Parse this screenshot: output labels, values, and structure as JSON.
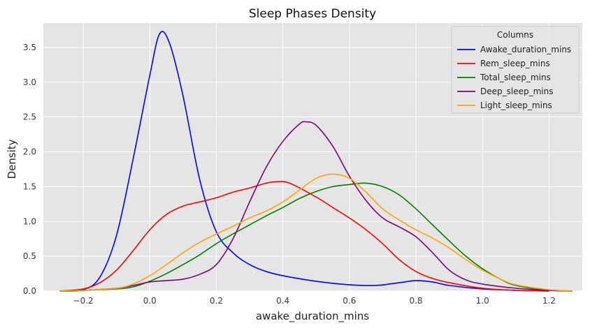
{
  "chart_data": {
    "type": "line",
    "title": "Sleep Phases Density",
    "xlabel": "awake_duration_mins",
    "ylabel": "Density",
    "xlim": [
      -0.32,
      1.3
    ],
    "ylim": [
      0,
      3.85
    ],
    "x_ticks": [
      -0.2,
      0.0,
      0.2,
      0.4,
      0.6,
      0.8,
      1.0,
      1.2
    ],
    "x_tick_labels": [
      "−0.2",
      "0.0",
      "0.2",
      "0.4",
      "0.6",
      "0.8",
      "1.0",
      "1.2"
    ],
    "y_ticks": [
      0,
      0.5,
      1.0,
      1.5,
      2.0,
      2.5,
      3.0,
      3.5
    ],
    "y_tick_labels": [
      "0.0",
      "0.5",
      "1.0",
      "1.5",
      "2.0",
      "2.5",
      "3.0",
      "3.5"
    ],
    "grid": true,
    "legend": {
      "title": "Columns",
      "placement": "top-right"
    },
    "series": [
      {
        "name": "Awake_duration_mins",
        "color": "#0000ff",
        "points": [
          [
            -0.27,
            0.0
          ],
          [
            -0.2,
            0.02
          ],
          [
            -0.15,
            0.2
          ],
          [
            -0.1,
            0.8
          ],
          [
            -0.05,
            1.9
          ],
          [
            0.0,
            3.1
          ],
          [
            0.03,
            3.7
          ],
          [
            0.06,
            3.55
          ],
          [
            0.1,
            2.8
          ],
          [
            0.15,
            1.6
          ],
          [
            0.2,
            0.85
          ],
          [
            0.25,
            0.55
          ],
          [
            0.3,
            0.38
          ],
          [
            0.35,
            0.28
          ],
          [
            0.4,
            0.22
          ],
          [
            0.5,
            0.14
          ],
          [
            0.6,
            0.09
          ],
          [
            0.68,
            0.08
          ],
          [
            0.75,
            0.12
          ],
          [
            0.8,
            0.15
          ],
          [
            0.85,
            0.13
          ],
          [
            0.9,
            0.08
          ],
          [
            1.0,
            0.03
          ],
          [
            1.1,
            0.01
          ],
          [
            1.2,
            0.0
          ]
        ]
      },
      {
        "name": "Rem_sleep_mins",
        "color": "#ff0000",
        "points": [
          [
            -0.27,
            0.0
          ],
          [
            -0.2,
            0.03
          ],
          [
            -0.15,
            0.12
          ],
          [
            -0.1,
            0.3
          ],
          [
            -0.05,
            0.58
          ],
          [
            0.0,
            0.88
          ],
          [
            0.05,
            1.1
          ],
          [
            0.1,
            1.22
          ],
          [
            0.15,
            1.28
          ],
          [
            0.2,
            1.34
          ],
          [
            0.25,
            1.42
          ],
          [
            0.3,
            1.48
          ],
          [
            0.35,
            1.55
          ],
          [
            0.38,
            1.57
          ],
          [
            0.42,
            1.55
          ],
          [
            0.5,
            1.35
          ],
          [
            0.55,
            1.2
          ],
          [
            0.6,
            1.05
          ],
          [
            0.65,
            0.88
          ],
          [
            0.7,
            0.68
          ],
          [
            0.75,
            0.45
          ],
          [
            0.8,
            0.28
          ],
          [
            0.85,
            0.18
          ],
          [
            0.9,
            0.12
          ],
          [
            1.0,
            0.04
          ],
          [
            1.1,
            0.01
          ],
          [
            1.2,
            0.0
          ]
        ]
      },
      {
        "name": "Total_sleep_mins",
        "color": "#008000",
        "points": [
          [
            -0.27,
            0.0
          ],
          [
            -0.2,
            0.01
          ],
          [
            -0.1,
            0.03
          ],
          [
            -0.05,
            0.06
          ],
          [
            0.0,
            0.14
          ],
          [
            0.05,
            0.25
          ],
          [
            0.1,
            0.38
          ],
          [
            0.15,
            0.52
          ],
          [
            0.2,
            0.68
          ],
          [
            0.25,
            0.82
          ],
          [
            0.3,
            0.95
          ],
          [
            0.35,
            1.08
          ],
          [
            0.4,
            1.2
          ],
          [
            0.45,
            1.33
          ],
          [
            0.5,
            1.43
          ],
          [
            0.55,
            1.5
          ],
          [
            0.6,
            1.53
          ],
          [
            0.65,
            1.55
          ],
          [
            0.7,
            1.5
          ],
          [
            0.75,
            1.38
          ],
          [
            0.8,
            1.18
          ],
          [
            0.85,
            0.95
          ],
          [
            0.9,
            0.72
          ],
          [
            0.95,
            0.5
          ],
          [
            1.0,
            0.32
          ],
          [
            1.05,
            0.18
          ],
          [
            1.1,
            0.08
          ],
          [
            1.2,
            0.01
          ],
          [
            1.27,
            0.0
          ]
        ]
      },
      {
        "name": "Deep_sleep_mins",
        "color": "#800080",
        "points": [
          [
            -0.27,
            0.0
          ],
          [
            -0.2,
            0.01
          ],
          [
            -0.1,
            0.04
          ],
          [
            -0.05,
            0.08
          ],
          [
            0.0,
            0.13
          ],
          [
            0.05,
            0.15
          ],
          [
            0.1,
            0.17
          ],
          [
            0.15,
            0.24
          ],
          [
            0.2,
            0.38
          ],
          [
            0.25,
            0.75
          ],
          [
            0.3,
            1.28
          ],
          [
            0.35,
            1.78
          ],
          [
            0.4,
            2.15
          ],
          [
            0.45,
            2.4
          ],
          [
            0.47,
            2.43
          ],
          [
            0.5,
            2.38
          ],
          [
            0.55,
            2.08
          ],
          [
            0.6,
            1.65
          ],
          [
            0.65,
            1.3
          ],
          [
            0.7,
            1.05
          ],
          [
            0.75,
            0.92
          ],
          [
            0.8,
            0.78
          ],
          [
            0.85,
            0.55
          ],
          [
            0.9,
            0.3
          ],
          [
            0.95,
            0.16
          ],
          [
            1.0,
            0.1
          ],
          [
            1.1,
            0.04
          ],
          [
            1.2,
            0.01
          ],
          [
            1.27,
            0.0
          ]
        ]
      },
      {
        "name": "Light_sleep_mins",
        "color": "#ffa500",
        "points": [
          [
            -0.27,
            0.0
          ],
          [
            -0.2,
            0.01
          ],
          [
            -0.1,
            0.04
          ],
          [
            -0.05,
            0.1
          ],
          [
            0.0,
            0.22
          ],
          [
            0.05,
            0.38
          ],
          [
            0.1,
            0.55
          ],
          [
            0.15,
            0.7
          ],
          [
            0.2,
            0.82
          ],
          [
            0.25,
            0.93
          ],
          [
            0.3,
            1.05
          ],
          [
            0.35,
            1.15
          ],
          [
            0.4,
            1.28
          ],
          [
            0.45,
            1.45
          ],
          [
            0.5,
            1.62
          ],
          [
            0.55,
            1.68
          ],
          [
            0.6,
            1.62
          ],
          [
            0.65,
            1.42
          ],
          [
            0.7,
            1.18
          ],
          [
            0.75,
            1.02
          ],
          [
            0.8,
            0.88
          ],
          [
            0.85,
            0.76
          ],
          [
            0.9,
            0.62
          ],
          [
            0.95,
            0.45
          ],
          [
            1.0,
            0.3
          ],
          [
            1.05,
            0.18
          ],
          [
            1.1,
            0.09
          ],
          [
            1.2,
            0.02
          ],
          [
            1.27,
            0.0
          ]
        ]
      }
    ]
  }
}
